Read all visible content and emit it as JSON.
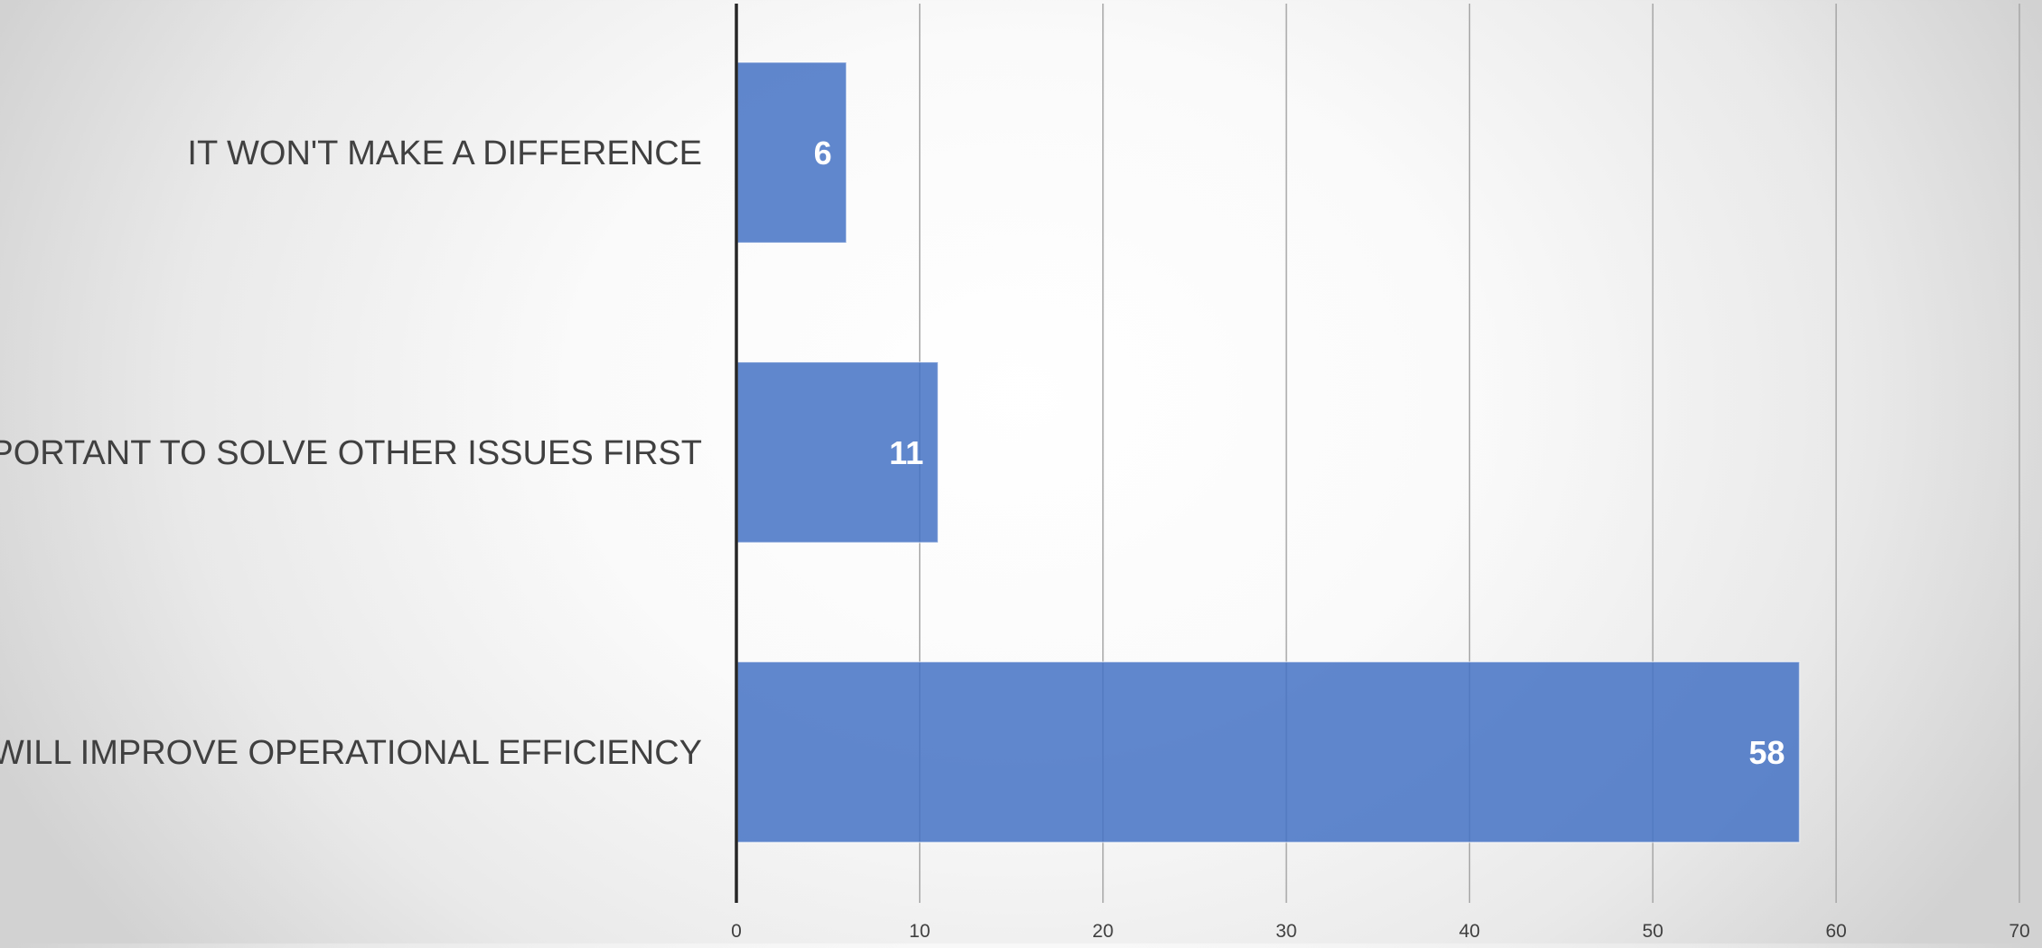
{
  "chart_data": {
    "type": "bar",
    "orientation": "horizontal",
    "categories": [
      "IT WON'T MAKE A DIFFERENCE",
      "IMPORTANT TO SOLVE OTHER ISSUES FIRST",
      "IT WILL IMPROVE OPERATIONAL EFFICIENCY"
    ],
    "values": [
      6,
      11,
      58
    ],
    "data_labels": [
      "6",
      "11",
      "58"
    ],
    "xlim": [
      0,
      70
    ],
    "x_ticks": [
      0,
      10,
      20,
      30,
      40,
      50,
      60,
      70
    ],
    "x_tick_labels": [
      "0",
      "10",
      "20",
      "30",
      "40",
      "50",
      "60",
      "70"
    ],
    "title": "",
    "xlabel": "",
    "ylabel": "",
    "grid": "vertical",
    "legend": "none",
    "bar_color": "#4472c4"
  }
}
